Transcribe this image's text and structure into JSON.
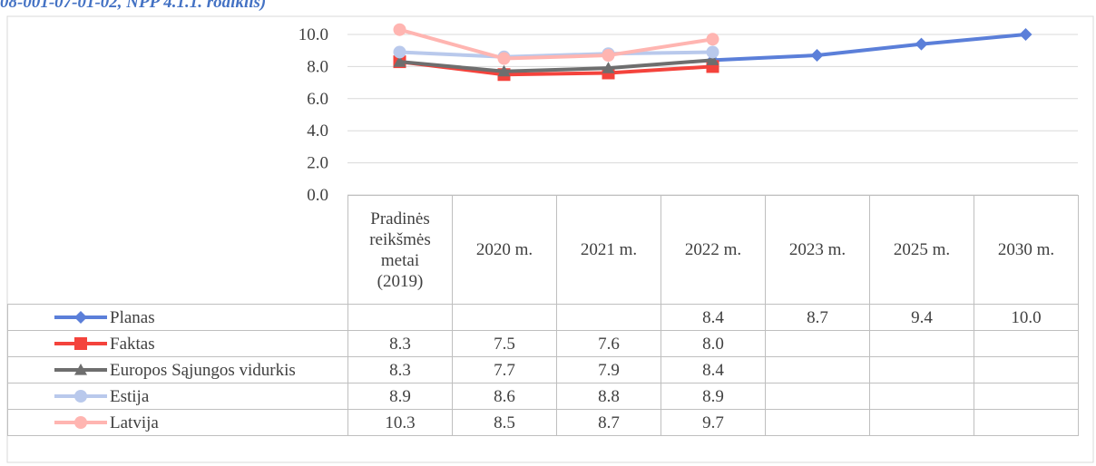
{
  "chart_data": {
    "type": "line",
    "title": "08-001-07-01-02, NPP 4.1.1. rodiklis)",
    "categories": [
      "Pradinės reikšmės metai (2019)",
      "2020 m.",
      "2021 m.",
      "2022 m.",
      "2023 m.",
      "2025 m.",
      "2030 m."
    ],
    "series": [
      {
        "name": "Planas",
        "color": "#5b7fd9",
        "marker": "diamond",
        "values": [
          null,
          null,
          null,
          8.4,
          8.7,
          9.4,
          10.0
        ],
        "value_labels": [
          null,
          null,
          null,
          "8.4",
          "8.7",
          "9.4",
          "10.0"
        ]
      },
      {
        "name": "Faktas",
        "color": "#f4433c",
        "marker": "square",
        "values": [
          8.3,
          7.5,
          7.6,
          8.0,
          null,
          null,
          null
        ],
        "value_labels": [
          "8.3",
          "7.5",
          "7.6",
          "8.0",
          null,
          null,
          null
        ]
      },
      {
        "name": "Europos Sąjungos vidurkis",
        "color": "#6e6e6e",
        "marker": "triangle",
        "values": [
          8.3,
          7.7,
          7.9,
          8.4,
          null,
          null,
          null
        ],
        "value_labels": [
          "8.3",
          "7.7",
          "7.9",
          "8.4",
          null,
          null,
          null
        ]
      },
      {
        "name": "Estija",
        "color": "#b9c9ec",
        "marker": "circle",
        "values": [
          8.9,
          8.6,
          8.8,
          8.9,
          null,
          null,
          null
        ],
        "value_labels": [
          "8.9",
          "8.6",
          "8.8",
          "8.9",
          null,
          null,
          null
        ]
      },
      {
        "name": "Latvija",
        "color": "#ffb5b1",
        "marker": "circle",
        "values": [
          10.3,
          8.5,
          8.7,
          9.7,
          null,
          null,
          null
        ],
        "value_labels": [
          "10.3",
          "8.5",
          "8.7",
          "9.7",
          null,
          null,
          null
        ]
      }
    ],
    "ylim": [
      0,
      10
    ],
    "yticks": [
      {
        "value": 0,
        "label": "0.0"
      },
      {
        "value": 2,
        "label": "2.0"
      },
      {
        "value": 4,
        "label": "4.0"
      },
      {
        "value": 6,
        "label": "6.0"
      },
      {
        "value": 8,
        "label": "8.0"
      },
      {
        "value": 10,
        "label": "10.0"
      }
    ],
    "grid": true
  }
}
